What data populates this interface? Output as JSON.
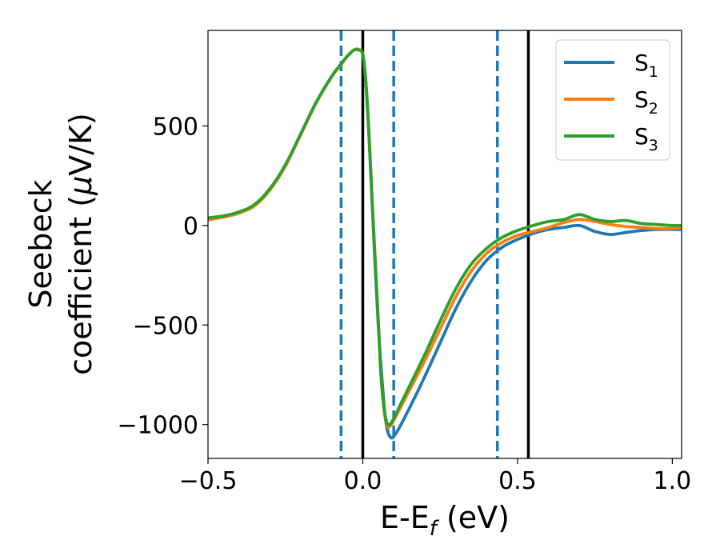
{
  "chart_data": {
    "type": "line",
    "xlabel": {
      "main": "E-E",
      "sub": "f",
      "unit": " (eV)"
    },
    "ylabel": {
      "line1": "Seebeck",
      "line2_pre": "coefficient  (",
      "mu": "μ",
      "line2_post": "V/K)"
    },
    "xlim": [
      -0.5,
      1.03
    ],
    "ylim": [
      -1170,
      980
    ],
    "xticks": [
      {
        "value": -0.5,
        "label": "−0.5"
      },
      {
        "value": 0.0,
        "label": "0.0"
      },
      {
        "value": 0.5,
        "label": "0.5"
      },
      {
        "value": 1.0,
        "label": "1.0"
      }
    ],
    "yticks": [
      {
        "value": -1000,
        "label": "−1000"
      },
      {
        "value": -500,
        "label": "−500"
      },
      {
        "value": 0,
        "label": "0"
      },
      {
        "value": 500,
        "label": "500"
      }
    ],
    "grid": false,
    "legend_position": "top-right",
    "vertical_lines": [
      {
        "x": -0.07,
        "style": "dashed",
        "color": "#1f77b4"
      },
      {
        "x": 0.1,
        "style": "dashed",
        "color": "#1f77b4"
      },
      {
        "x": 0.435,
        "style": "dashed",
        "color": "#1f77b4"
      },
      {
        "x": 0.0,
        "style": "solid",
        "color": "#000000"
      },
      {
        "x": 0.535,
        "style": "solid",
        "color": "#000000"
      }
    ],
    "series": [
      {
        "name": "S",
        "sub": "1",
        "color": "#1f77b4",
        "x": [
          -0.5,
          -0.45,
          -0.4,
          -0.35,
          -0.3,
          -0.25,
          -0.2,
          -0.15,
          -0.1,
          -0.07,
          -0.05,
          -0.03,
          -0.015,
          0.0,
          0.01,
          0.02,
          0.03,
          0.05,
          0.07,
          0.08,
          0.09,
          0.1,
          0.12,
          0.15,
          0.2,
          0.25,
          0.3,
          0.35,
          0.4,
          0.45,
          0.5,
          0.55,
          0.6,
          0.65,
          0.7,
          0.75,
          0.8,
          0.85,
          0.9,
          0.95,
          1.0,
          1.03
        ],
        "y": [
          35,
          45,
          65,
          100,
          180,
          300,
          460,
          620,
          750,
          810,
          850,
          880,
          885,
          860,
          720,
          450,
          120,
          -500,
          -920,
          -1030,
          -1065,
          -1060,
          -1010,
          -920,
          -760,
          -590,
          -420,
          -280,
          -175,
          -110,
          -70,
          -40,
          -20,
          -10,
          0,
          -30,
          -45,
          -35,
          -25,
          -20,
          -20,
          -20
        ]
      },
      {
        "name": "S",
        "sub": "2",
        "color": "#ff7f0e",
        "x": [
          -0.5,
          -0.45,
          -0.4,
          -0.35,
          -0.3,
          -0.25,
          -0.2,
          -0.15,
          -0.1,
          -0.07,
          -0.05,
          -0.03,
          -0.015,
          0.0,
          0.01,
          0.02,
          0.03,
          0.05,
          0.06,
          0.07,
          0.08,
          0.09,
          0.1,
          0.12,
          0.15,
          0.2,
          0.25,
          0.3,
          0.35,
          0.4,
          0.45,
          0.5,
          0.55,
          0.6,
          0.65,
          0.7,
          0.75,
          0.8,
          0.85,
          0.9,
          0.95,
          1.0,
          1.03
        ],
        "y": [
          28,
          42,
          62,
          98,
          178,
          298,
          458,
          618,
          748,
          810,
          850,
          880,
          885,
          860,
          720,
          460,
          130,
          -480,
          -780,
          -940,
          -1010,
          -1005,
          -980,
          -920,
          -830,
          -680,
          -520,
          -360,
          -230,
          -140,
          -85,
          -50,
          -30,
          -10,
          15,
          30,
          20,
          5,
          -5,
          -10,
          -15,
          -15,
          -10
        ]
      },
      {
        "name": "S",
        "sub": "3",
        "color": "#2ca02c",
        "x": [
          -0.5,
          -0.45,
          -0.4,
          -0.35,
          -0.3,
          -0.25,
          -0.2,
          -0.15,
          -0.1,
          -0.07,
          -0.05,
          -0.03,
          -0.015,
          0.0,
          0.01,
          0.02,
          0.03,
          0.05,
          0.06,
          0.07,
          0.08,
          0.09,
          0.1,
          0.12,
          0.15,
          0.2,
          0.25,
          0.3,
          0.35,
          0.4,
          0.45,
          0.5,
          0.55,
          0.6,
          0.65,
          0.7,
          0.75,
          0.8,
          0.85,
          0.9,
          0.95,
          1.0,
          1.03
        ],
        "y": [
          38,
          48,
          68,
          105,
          185,
          305,
          462,
          620,
          750,
          812,
          850,
          880,
          882,
          858,
          720,
          460,
          130,
          -480,
          -780,
          -930,
          -1000,
          -995,
          -970,
          -905,
          -810,
          -650,
          -480,
          -320,
          -195,
          -115,
          -60,
          -25,
          0,
          20,
          30,
          55,
          30,
          20,
          25,
          10,
          5,
          0,
          0
        ]
      }
    ]
  }
}
